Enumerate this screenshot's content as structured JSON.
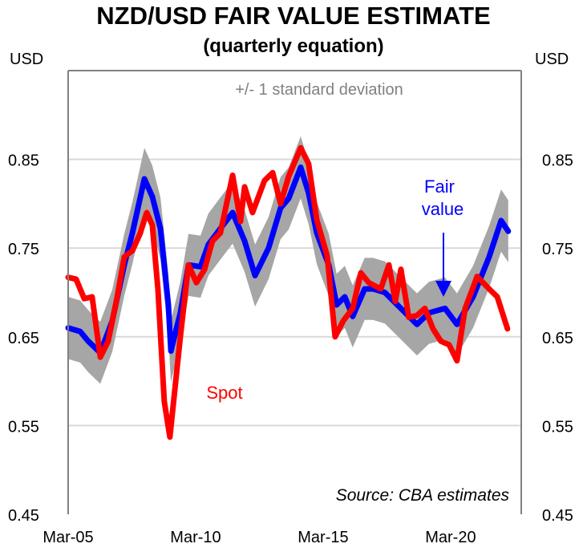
{
  "chart_data": {
    "type": "line",
    "title": "NZD/USD FAIR VALUE ESTIMATE",
    "subtitle": "(quarterly equation)",
    "ylabel_left": "USD",
    "ylabel_right": "USD",
    "ylim": [
      0.45,
      0.95
    ],
    "xlim": [
      2005.2,
      2022.97
    ],
    "y_ticks": [
      0.45,
      0.55,
      0.65,
      0.75,
      0.85
    ],
    "y_tick_labels": [
      "0.45",
      "0.55",
      "0.65",
      "0.75",
      "0.85"
    ],
    "x_ticks": [
      2005.2,
      2010.2,
      2015.2,
      2020.2
    ],
    "x_tick_labels": [
      "Mar-05",
      "Mar-10",
      "Mar-15",
      "Mar-20"
    ],
    "grid": "horizontal",
    "band_label": "+/- 1 standard deviation",
    "band_half_width": 0.035,
    "source": "Source: CBA estimates",
    "colors": {
      "fair": "#0000ff",
      "spot": "#ff0000",
      "band": "#a6a6a6",
      "grid": "#d9d9d9",
      "axis": "#808080"
    },
    "series": [
      {
        "name": "Fair value",
        "label_lines": [
          "Fair",
          "value"
        ],
        "color": "#0000ff",
        "points": [
          [
            2005.2,
            0.66
          ],
          [
            2005.67,
            0.656
          ],
          [
            2005.99,
            0.645
          ],
          [
            2006.46,
            0.632
          ],
          [
            2006.93,
            0.668
          ],
          [
            2007.4,
            0.731
          ],
          [
            2007.72,
            0.767
          ],
          [
            2008.19,
            0.828
          ],
          [
            2008.5,
            0.808
          ],
          [
            2008.82,
            0.772
          ],
          [
            2009.13,
            0.686
          ],
          [
            2009.23,
            0.634
          ],
          [
            2009.6,
            0.677
          ],
          [
            2009.92,
            0.731
          ],
          [
            2010.39,
            0.729
          ],
          [
            2010.7,
            0.754
          ],
          [
            2011.17,
            0.772
          ],
          [
            2011.65,
            0.79
          ],
          [
            2012.12,
            0.758
          ],
          [
            2012.53,
            0.719
          ],
          [
            2013.06,
            0.75
          ],
          [
            2013.53,
            0.795
          ],
          [
            2013.85,
            0.806
          ],
          [
            2014.32,
            0.841
          ],
          [
            2014.63,
            0.812
          ],
          [
            2014.95,
            0.767
          ],
          [
            2015.42,
            0.731
          ],
          [
            2015.73,
            0.686
          ],
          [
            2016.05,
            0.695
          ],
          [
            2016.36,
            0.673
          ],
          [
            2016.83,
            0.704
          ],
          [
            2017.15,
            0.704
          ],
          [
            2017.62,
            0.7
          ],
          [
            2018.25,
            0.682
          ],
          [
            2018.88,
            0.664
          ],
          [
            2019.35,
            0.677
          ],
          [
            2019.98,
            0.682
          ],
          [
            2020.45,
            0.664
          ],
          [
            2021.08,
            0.695
          ],
          [
            2021.71,
            0.74
          ],
          [
            2022.18,
            0.781
          ],
          [
            2022.46,
            0.769
          ]
        ]
      },
      {
        "name": "Spot",
        "label_lines": [
          "Spot"
        ],
        "color": "#ff0000",
        "points": [
          [
            2005.2,
            0.717
          ],
          [
            2005.51,
            0.715
          ],
          [
            2005.83,
            0.693
          ],
          [
            2006.14,
            0.695
          ],
          [
            2006.46,
            0.627
          ],
          [
            2006.77,
            0.645
          ],
          [
            2007.09,
            0.69
          ],
          [
            2007.4,
            0.74
          ],
          [
            2007.72,
            0.747
          ],
          [
            2008.03,
            0.767
          ],
          [
            2008.28,
            0.79
          ],
          [
            2008.5,
            0.776
          ],
          [
            2008.72,
            0.704
          ],
          [
            2008.97,
            0.577
          ],
          [
            2009.19,
            0.537
          ],
          [
            2009.6,
            0.65
          ],
          [
            2009.92,
            0.731
          ],
          [
            2010.23,
            0.711
          ],
          [
            2010.55,
            0.726
          ],
          [
            2010.86,
            0.758
          ],
          [
            2011.17,
            0.767
          ],
          [
            2011.65,
            0.832
          ],
          [
            2011.96,
            0.78
          ],
          [
            2012.12,
            0.819
          ],
          [
            2012.43,
            0.79
          ],
          [
            2012.9,
            0.826
          ],
          [
            2013.22,
            0.835
          ],
          [
            2013.53,
            0.8
          ],
          [
            2013.85,
            0.831
          ],
          [
            2014.32,
            0.863
          ],
          [
            2014.63,
            0.845
          ],
          [
            2014.95,
            0.782
          ],
          [
            2015.36,
            0.741
          ],
          [
            2015.67,
            0.65
          ],
          [
            2015.99,
            0.668
          ],
          [
            2016.36,
            0.682
          ],
          [
            2016.68,
            0.722
          ],
          [
            2016.99,
            0.711
          ],
          [
            2017.46,
            0.704
          ],
          [
            2017.78,
            0.731
          ],
          [
            2018.03,
            0.69
          ],
          [
            2018.25,
            0.726
          ],
          [
            2018.56,
            0.672
          ],
          [
            2018.88,
            0.674
          ],
          [
            2019.19,
            0.682
          ],
          [
            2019.51,
            0.659
          ],
          [
            2019.82,
            0.645
          ],
          [
            2020.14,
            0.641
          ],
          [
            2020.45,
            0.623
          ],
          [
            2020.77,
            0.682
          ],
          [
            2021.24,
            0.718
          ],
          [
            2021.71,
            0.704
          ],
          [
            2022.03,
            0.695
          ],
          [
            2022.43,
            0.659
          ]
        ]
      }
    ]
  }
}
